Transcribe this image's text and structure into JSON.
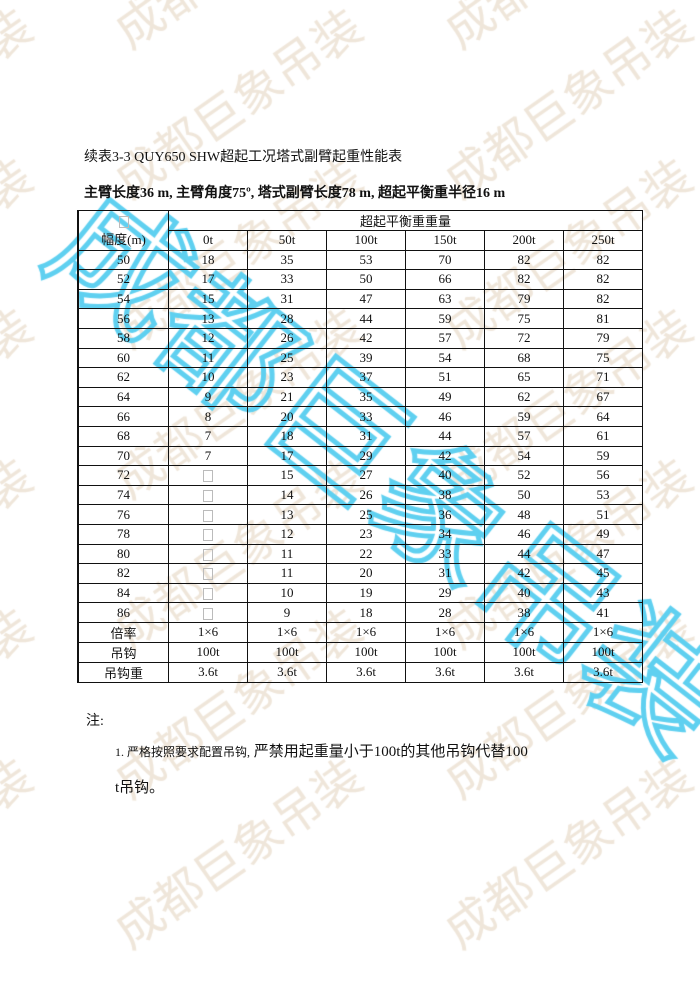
{
  "title": "续表3-3 QUY650 SHW超起工况塔式副臂起重性能表",
  "subtitle": "主臂长度36 m, 主臂角度75º, 塔式副臂长度78 m, 超起平衡重半径16 m",
  "table": {
    "col0_header": "幅度(m)",
    "group_header": "超起平衡重重量",
    "columns": [
      "0t",
      "50t",
      "100t",
      "150t",
      "200t",
      "250t"
    ],
    "rows": [
      [
        "50",
        "18",
        "35",
        "53",
        "70",
        "82",
        "82"
      ],
      [
        "52",
        "17",
        "33",
        "50",
        "66",
        "82",
        "82"
      ],
      [
        "54",
        "15",
        "31",
        "47",
        "63",
        "79",
        "82"
      ],
      [
        "56",
        "13",
        "28",
        "44",
        "59",
        "75",
        "81"
      ],
      [
        "58",
        "12",
        "26",
        "42",
        "57",
        "72",
        "79"
      ],
      [
        "60",
        "11",
        "25",
        "39",
        "54",
        "68",
        "75"
      ],
      [
        "62",
        "10",
        "23",
        "37",
        "51",
        "65",
        "71"
      ],
      [
        "64",
        "9",
        "21",
        "35",
        "49",
        "62",
        "67"
      ],
      [
        "66",
        "8",
        "20",
        "33",
        "46",
        "59",
        "64"
      ],
      [
        "68",
        "7",
        "18",
        "31",
        "44",
        "57",
        "61"
      ],
      [
        "70",
        "7",
        "17",
        "29",
        "42",
        "54",
        "59"
      ],
      [
        "72",
        "",
        "15",
        "27",
        "40",
        "52",
        "56"
      ],
      [
        "74",
        "",
        "14",
        "26",
        "38",
        "50",
        "53"
      ],
      [
        "76",
        "",
        "13",
        "25",
        "36",
        "48",
        "51"
      ],
      [
        "78",
        "",
        "12",
        "23",
        "34",
        "46",
        "49"
      ],
      [
        "80",
        "",
        "11",
        "22",
        "33",
        "44",
        "47"
      ],
      [
        "82",
        "",
        "11",
        "20",
        "31",
        "42",
        "45"
      ],
      [
        "84",
        "",
        "10",
        "19",
        "29",
        "40",
        "43"
      ],
      [
        "86",
        "",
        "9",
        "18",
        "28",
        "38",
        "41"
      ],
      [
        "倍率",
        "1×6",
        "1×6",
        "1×6",
        "1×6",
        "1×6",
        "1×6"
      ],
      [
        "吊钩",
        "100t",
        "100t",
        "100t",
        "100t",
        "100t",
        "100t"
      ],
      [
        "吊钩重",
        "3.6t",
        "3.6t",
        "3.6t",
        "3.6t",
        "3.6t",
        "3.6t"
      ]
    ]
  },
  "notes": {
    "label": "注:",
    "line1_prefix": "1. 严格按照要求配置吊钩,",
    "line1_rest": " 严禁用起重量小于100t的其他吊钩代替100",
    "line2": "t吊钩。"
  },
  "watermark": {
    "text": "成都巨象吊装",
    "faint_color": "#e8dccb",
    "blue_color": "#5fd0f0"
  }
}
